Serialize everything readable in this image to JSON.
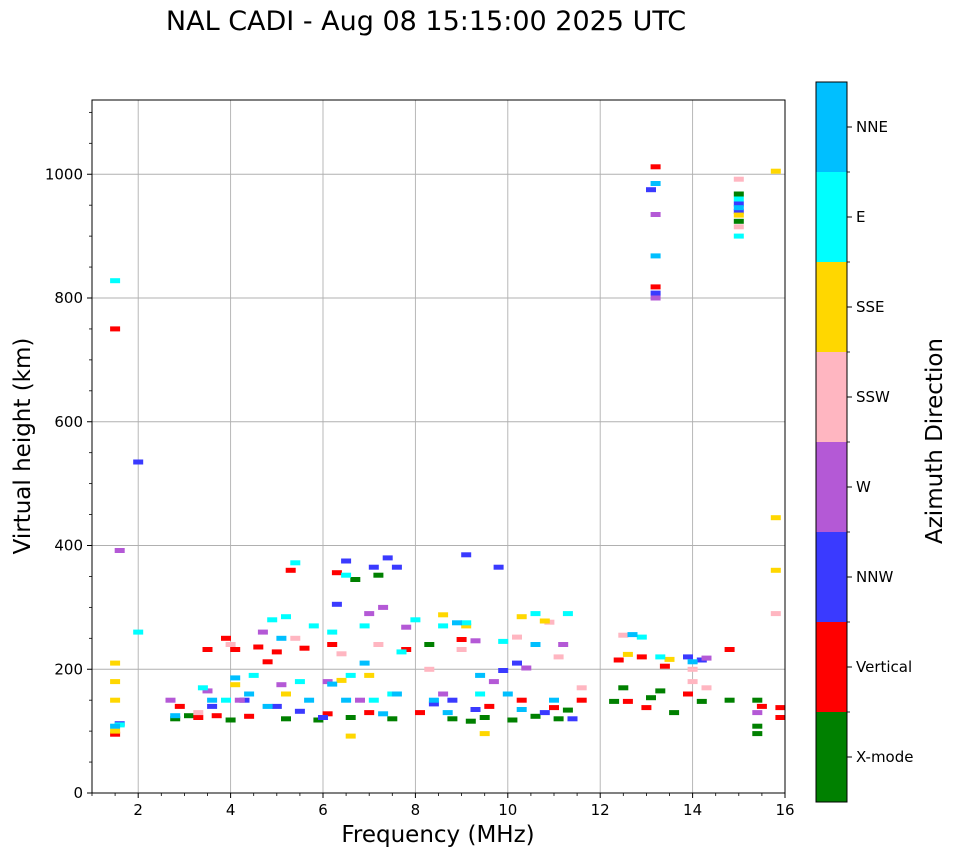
{
  "chart_data": {
    "type": "scatter",
    "title": "NAL CADI - Aug 08 15:15:00 2025 UTC",
    "xlabel": "Frequency (MHz)",
    "ylabel": "Virtual height (km)",
    "xlim": [
      1,
      16
    ],
    "ylim": [
      0,
      1120
    ],
    "xticks": [
      2,
      4,
      6,
      8,
      10,
      12,
      14,
      16
    ],
    "yticks": [
      0,
      200,
      400,
      600,
      800,
      1000
    ],
    "grid": true,
    "colorbar": {
      "label": "Azimuth Direction",
      "entries": [
        {
          "name": "X-mode",
          "color": "#008000"
        },
        {
          "name": "Vertical",
          "color": "#ff0000"
        },
        {
          "name": "NNW",
          "color": "#3a3aff"
        },
        {
          "name": "W",
          "color": "#b459d6"
        },
        {
          "name": "SSW",
          "color": "#ffb6c1"
        },
        {
          "name": "SSE",
          "color": "#ffd700"
        },
        {
          "name": "E",
          "color": "#00ffff"
        },
        {
          "name": "NNE",
          "color": "#00bfff"
        }
      ]
    },
    "series": [
      {
        "name": "X-mode",
        "points": [
          [
            2.8,
            120
          ],
          [
            3.1,
            125
          ],
          [
            4.0,
            118
          ],
          [
            5.2,
            120
          ],
          [
            5.9,
            118
          ],
          [
            6.6,
            122
          ],
          [
            7.5,
            120
          ],
          [
            8.8,
            120
          ],
          [
            9.2,
            116
          ],
          [
            9.5,
            122
          ],
          [
            10.1,
            118
          ],
          [
            10.6,
            124
          ],
          [
            11.1,
            120
          ],
          [
            11.3,
            134
          ],
          [
            12.3,
            148
          ],
          [
            12.5,
            170
          ],
          [
            13.1,
            154
          ],
          [
            13.3,
            165
          ],
          [
            13.6,
            130
          ],
          [
            14.2,
            148
          ],
          [
            14.8,
            150
          ],
          [
            15.4,
            96
          ],
          [
            15.4,
            108
          ],
          [
            15.4,
            150
          ],
          [
            6.7,
            345
          ],
          [
            7.2,
            352
          ],
          [
            8.3,
            240
          ],
          [
            15.0,
            968
          ],
          [
            15.0,
            924
          ]
        ]
      },
      {
        "name": "Vertical",
        "points": [
          [
            1.5,
            750
          ],
          [
            1.5,
            95
          ],
          [
            2.9,
            140
          ],
          [
            3.3,
            122
          ],
          [
            3.7,
            125
          ],
          [
            4.1,
            232
          ],
          [
            4.4,
            124
          ],
          [
            4.6,
            236
          ],
          [
            5.0,
            228
          ],
          [
            5.3,
            360
          ],
          [
            5.6,
            234
          ],
          [
            6.1,
            128
          ],
          [
            6.2,
            240
          ],
          [
            6.3,
            356
          ],
          [
            7.0,
            130
          ],
          [
            7.8,
            232
          ],
          [
            8.1,
            130
          ],
          [
            9.0,
            248
          ],
          [
            9.6,
            140
          ],
          [
            10.3,
            150
          ],
          [
            11.0,
            138
          ],
          [
            11.6,
            150
          ],
          [
            12.4,
            215
          ],
          [
            12.6,
            148
          ],
          [
            12.9,
            220
          ],
          [
            13.0,
            138
          ],
          [
            13.2,
            1012
          ],
          [
            13.2,
            818
          ],
          [
            13.4,
            205
          ],
          [
            13.9,
            160
          ],
          [
            14.8,
            232
          ],
          [
            15.5,
            140
          ],
          [
            15.9,
            122
          ],
          [
            15.9,
            138
          ],
          [
            3.5,
            232
          ],
          [
            3.9,
            250
          ],
          [
            4.8,
            212
          ]
        ]
      },
      {
        "name": "NNW",
        "points": [
          [
            2.0,
            535
          ],
          [
            1.6,
            112
          ],
          [
            3.6,
            140
          ],
          [
            4.3,
            150
          ],
          [
            5.0,
            140
          ],
          [
            5.5,
            132
          ],
          [
            6.3,
            305
          ],
          [
            6.5,
            375
          ],
          [
            7.1,
            365
          ],
          [
            7.4,
            380
          ],
          [
            7.6,
            365
          ],
          [
            9.1,
            385
          ],
          [
            9.8,
            365
          ],
          [
            8.8,
            150
          ],
          [
            9.3,
            135
          ],
          [
            10.2,
            210
          ],
          [
            10.8,
            130
          ],
          [
            11.4,
            120
          ],
          [
            13.2,
            808
          ],
          [
            13.1,
            975
          ],
          [
            13.9,
            220
          ],
          [
            14.2,
            215
          ],
          [
            15.0,
            940
          ],
          [
            15.0,
            952
          ],
          [
            6.0,
            122
          ],
          [
            8.4,
            144
          ],
          [
            9.9,
            198
          ]
        ]
      },
      {
        "name": "W",
        "points": [
          [
            1.6,
            392
          ],
          [
            2.7,
            150
          ],
          [
            3.5,
            165
          ],
          [
            4.2,
            150
          ],
          [
            5.1,
            175
          ],
          [
            6.1,
            180
          ],
          [
            7.0,
            290
          ],
          [
            7.3,
            300
          ],
          [
            7.8,
            268
          ],
          [
            8.6,
            160
          ],
          [
            9.3,
            246
          ],
          [
            9.7,
            180
          ],
          [
            10.4,
            202
          ],
          [
            11.2,
            240
          ],
          [
            13.2,
            800
          ],
          [
            13.2,
            935
          ],
          [
            14.3,
            218
          ],
          [
            15.4,
            130
          ],
          [
            6.8,
            150
          ],
          [
            4.7,
            260
          ]
        ]
      },
      {
        "name": "SSW",
        "points": [
          [
            4.0,
            240
          ],
          [
            5.4,
            250
          ],
          [
            6.4,
            225
          ],
          [
            7.2,
            240
          ],
          [
            8.3,
            200
          ],
          [
            9.0,
            232
          ],
          [
            10.2,
            252
          ],
          [
            10.9,
            276
          ],
          [
            11.1,
            220
          ],
          [
            12.5,
            255
          ],
          [
            14.0,
            200
          ],
          [
            14.0,
            180
          ],
          [
            15.0,
            992
          ],
          [
            15.0,
            915
          ],
          [
            15.8,
            290
          ],
          [
            14.3,
            170
          ],
          [
            11.6,
            170
          ],
          [
            3.3,
            130
          ]
        ]
      },
      {
        "name": "SSE",
        "points": [
          [
            1.5,
            210
          ],
          [
            1.5,
            180
          ],
          [
            1.5,
            150
          ],
          [
            1.5,
            100
          ],
          [
            4.1,
            175
          ],
          [
            5.2,
            160
          ],
          [
            6.4,
            182
          ],
          [
            6.6,
            92
          ],
          [
            7.0,
            190
          ],
          [
            8.6,
            288
          ],
          [
            9.1,
            270
          ],
          [
            9.5,
            96
          ],
          [
            10.3,
            285
          ],
          [
            10.8,
            278
          ],
          [
            15.0,
            934
          ],
          [
            15.8,
            1005
          ],
          [
            15.8,
            445
          ],
          [
            15.8,
            360
          ],
          [
            12.6,
            224
          ],
          [
            13.5,
            216
          ]
        ]
      },
      {
        "name": "E",
        "points": [
          [
            1.5,
            828
          ],
          [
            1.6,
            110
          ],
          [
            2.0,
            260
          ],
          [
            3.4,
            170
          ],
          [
            3.9,
            150
          ],
          [
            4.5,
            190
          ],
          [
            4.9,
            280
          ],
          [
            5.2,
            285
          ],
          [
            5.5,
            180
          ],
          [
            5.8,
            270
          ],
          [
            6.2,
            260
          ],
          [
            6.6,
            190
          ],
          [
            6.9,
            270
          ],
          [
            7.1,
            150
          ],
          [
            7.5,
            160
          ],
          [
            8.0,
            280
          ],
          [
            8.6,
            270
          ],
          [
            9.1,
            275
          ],
          [
            9.4,
            160
          ],
          [
            9.9,
            245
          ],
          [
            10.6,
            290
          ],
          [
            11.3,
            290
          ],
          [
            12.9,
            252
          ],
          [
            13.3,
            220
          ],
          [
            15.0,
            900
          ],
          [
            15.0,
            960
          ],
          [
            5.4,
            372
          ],
          [
            6.5,
            352
          ],
          [
            7.7,
            228
          ]
        ]
      },
      {
        "name": "NNE",
        "points": [
          [
            1.5,
            108
          ],
          [
            2.8,
            125
          ],
          [
            3.6,
            150
          ],
          [
            4.1,
            186
          ],
          [
            4.4,
            160
          ],
          [
            4.8,
            140
          ],
          [
            5.7,
            150
          ],
          [
            6.2,
            176
          ],
          [
            6.5,
            150
          ],
          [
            7.3,
            128
          ],
          [
            7.6,
            160
          ],
          [
            8.4,
            150
          ],
          [
            8.9,
            275
          ],
          [
            9.4,
            190
          ],
          [
            10.0,
            160
          ],
          [
            10.3,
            135
          ],
          [
            10.6,
            240
          ],
          [
            11.0,
            150
          ],
          [
            13.2,
            985
          ],
          [
            13.2,
            868
          ],
          [
            14.0,
            212
          ],
          [
            15.0,
            946
          ],
          [
            12.7,
            256
          ],
          [
            5.1,
            250
          ],
          [
            6.9,
            210
          ],
          [
            8.7,
            130
          ]
        ]
      }
    ]
  }
}
